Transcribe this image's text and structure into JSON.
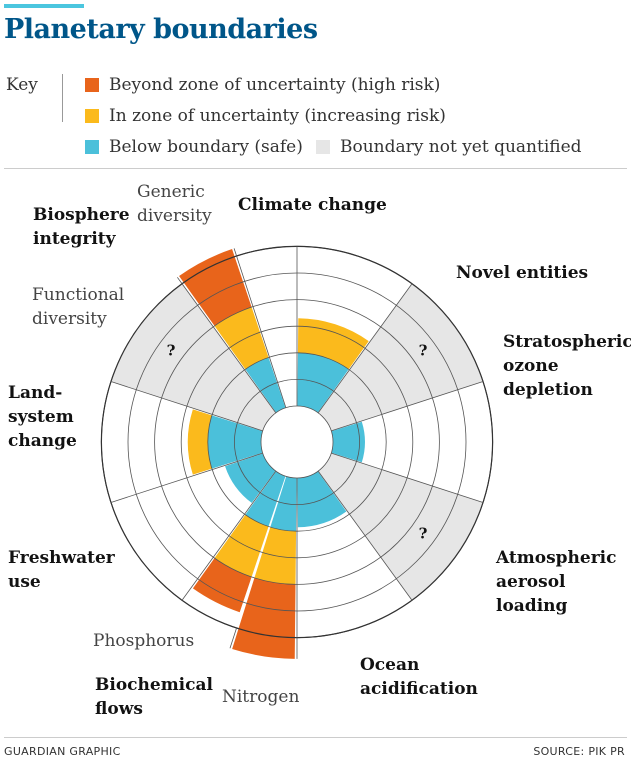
{
  "title": "Planetary boundaries",
  "legend": {
    "key_label": "Key",
    "items": [
      {
        "label": "Beyond zone of uncertainty (high risk)",
        "color": "#e8641b"
      },
      {
        "label": "In zone of uncertainty (increasing risk)",
        "color": "#fbba1c"
      },
      {
        "label": "Below boundary (safe)",
        "color": "#4bc0da"
      },
      {
        "label": "Boundary not yet quantified",
        "color": "#e6e6e6"
      }
    ]
  },
  "chart_data": {
    "type": "polar-area",
    "title": "Planetary boundaries",
    "ring_count": 6,
    "colors": {
      "safe": "#4bc0da",
      "uncertain": "#fbba1c",
      "high": "#e8641b",
      "unquantified": "#e6e6e6"
    },
    "segments": [
      {
        "name": "Climate change",
        "start_deg": 0,
        "end_deg": 36,
        "safe": 2,
        "uncertain": 3.3,
        "high": 0
      },
      {
        "name": "Novel entities",
        "start_deg": 36,
        "end_deg": 72,
        "unquantified": true,
        "mark": "?"
      },
      {
        "name": "Stratospheric ozone depletion",
        "start_deg": 72,
        "end_deg": 108,
        "safe": 1.2,
        "uncertain": 0,
        "high": 0
      },
      {
        "name": "Atmospheric aerosol loading",
        "start_deg": 108,
        "end_deg": 144,
        "unquantified": true,
        "mark": "?"
      },
      {
        "name": "Ocean acidification",
        "start_deg": 144,
        "end_deg": 180,
        "safe": 1.85,
        "uncertain": 0,
        "high": 0
      },
      {
        "name": "Nitrogen",
        "group": "Biochemical flows",
        "start_deg": 180,
        "end_deg": 198,
        "safe": 2,
        "uncertain": 4,
        "high": 6.8
      },
      {
        "name": "Phosphorus",
        "group": "Biochemical flows",
        "start_deg": 198,
        "end_deg": 216,
        "safe": 2,
        "uncertain": 4,
        "high": 5.4
      },
      {
        "name": "Freshwater use",
        "start_deg": 216,
        "end_deg": 252,
        "safe": 1.5,
        "uncertain": 0,
        "high": 0
      },
      {
        "name": "Land-system change",
        "start_deg": 252,
        "end_deg": 288,
        "safe": 2,
        "uncertain": 2.75,
        "high": 0
      },
      {
        "name": "Functional diversity",
        "group": "Biosphere integrity",
        "start_deg": 288,
        "end_deg": 324,
        "unquantified": true,
        "mark": "?"
      },
      {
        "name": "Generic diversity",
        "group": "Biosphere integrity",
        "start_deg": 324,
        "end_deg": 342,
        "safe": 2,
        "uncertain": 4,
        "high": 6.3
      }
    ],
    "labels": [
      {
        "text": [
          "Climate change"
        ],
        "bold": true
      },
      {
        "text": [
          "Novel entities"
        ],
        "bold": true
      },
      {
        "text": [
          "Stratospheric",
          "ozone",
          "depletion"
        ],
        "bold": true
      },
      {
        "text": [
          "Atmospheric",
          "aerosol",
          "loading"
        ],
        "bold": true
      },
      {
        "text": [
          "Ocean",
          "acidification"
        ],
        "bold": true
      },
      {
        "text": [
          "Biochemical",
          "flows"
        ],
        "bold": true
      },
      {
        "text": [
          "Nitrogen"
        ],
        "bold": false
      },
      {
        "text": [
          "Phosphorus"
        ],
        "bold": false
      },
      {
        "text": [
          "Freshwater",
          "use"
        ],
        "bold": true
      },
      {
        "text": [
          "Land-",
          "system",
          "change"
        ],
        "bold": true
      },
      {
        "text": [
          "Functional",
          "diversity"
        ],
        "bold": false
      },
      {
        "text": [
          "Biosphere",
          "integrity"
        ],
        "bold": true
      },
      {
        "text": [
          "Generic",
          "diversity"
        ],
        "bold": false
      }
    ]
  },
  "footer": {
    "credit": "GUARDIAN GRAPHIC",
    "source": "SOURCE: PIK PR"
  }
}
